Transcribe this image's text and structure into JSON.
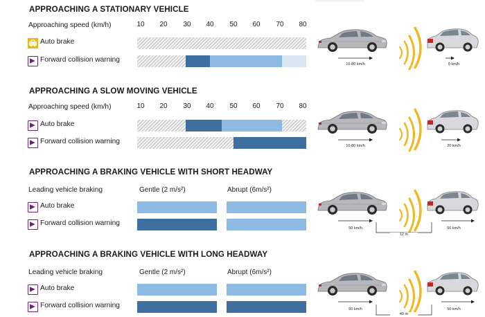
{
  "colors": {
    "light_blue": "#8db9e2",
    "dark_blue": "#3e6f9e",
    "pale_blue": "#d9e6f1",
    "hatch_gray": "#c8c8c8",
    "purple_icon": "#6b2478",
    "yellow_icon": "#e7b618",
    "radar_wave": "#f0b820",
    "car_body": "#b8b8bc"
  },
  "speed_ticks": [
    "10",
    "20",
    "30",
    "40",
    "50",
    "60",
    "70",
    "80"
  ],
  "sections": [
    {
      "title": "APPROACHING A STATIONARY VEHICLE",
      "header_label": "Approaching speed (km/h)",
      "rows": [
        {
          "label": "Auto brake",
          "icon": "auto-brake-yellow-icon",
          "segments": [
            {
              "from": 10,
              "to": 80,
              "style": "hatch"
            }
          ]
        },
        {
          "label": "Forward collision warning",
          "icon": "collision-warning-icon",
          "segments": [
            {
              "from": 10,
              "to": 30,
              "style": "hatch"
            },
            {
              "from": 30,
              "to": 40,
              "style": "dark"
            },
            {
              "from": 40,
              "to": 70,
              "style": "light"
            },
            {
              "from": 70,
              "to": 80,
              "style": "pale"
            }
          ]
        }
      ],
      "rear_car_speed": "10-80 km/h",
      "front_car_speed": "0 km/h"
    },
    {
      "title": "APPROACHING A SLOW MOVING VEHICLE",
      "header_label": "Approaching speed (km/h)",
      "rows": [
        {
          "label": "Auto brake",
          "icon": "auto-brake-icon",
          "segments": [
            {
              "from": 10,
              "to": 30,
              "style": "hatch"
            },
            {
              "from": 30,
              "to": 45,
              "style": "dark"
            },
            {
              "from": 45,
              "to": 70,
              "style": "light"
            },
            {
              "from": 70,
              "to": 80,
              "style": "hatch"
            }
          ]
        },
        {
          "label": "Forward collision warning",
          "icon": "collision-warning-icon",
          "segments": [
            {
              "from": 10,
              "to": 50,
              "style": "hatch"
            },
            {
              "from": 50,
              "to": 80,
              "style": "dark"
            }
          ]
        }
      ],
      "rear_car_speed": "10-80 km/h",
      "front_car_speed": "20 km/h"
    },
    {
      "title": "APPROACHING A BRAKING VEHICLE WITH SHORT HEADWAY",
      "header_label": "Leading vehicle braking",
      "gentle_label": "Gentle (2 m/s²)",
      "abrupt_label": "Abrupt (6m/s²)",
      "rows": [
        {
          "label": "Auto brake",
          "icon": "auto-brake-icon",
          "gentle": "light",
          "abrupt": "light"
        },
        {
          "label": "Forward collision warning",
          "icon": "collision-warning-icon",
          "gentle": "dark",
          "abrupt": "light"
        }
      ],
      "rear_car_speed": "50 km/h",
      "front_car_speed": "50 km/h",
      "headway": "12 m"
    },
    {
      "title": "APPROACHING A BRAKING VEHICLE WITH LONG HEADWAY",
      "header_label": "Leading vehicle braking",
      "gentle_label": "Gentle (2 m/s²)",
      "abrupt_label": "Abrupt (6m/s²)",
      "rows": [
        {
          "label": "Auto brake",
          "icon": "auto-brake-icon",
          "gentle": "light",
          "abrupt": "light"
        },
        {
          "label": "Forward collision warning",
          "icon": "collision-warning-icon",
          "gentle": "dark",
          "abrupt": "dark"
        }
      ],
      "rear_car_speed": "50 km/h",
      "front_car_speed": "50 km/h",
      "headway": "40 m"
    }
  ]
}
